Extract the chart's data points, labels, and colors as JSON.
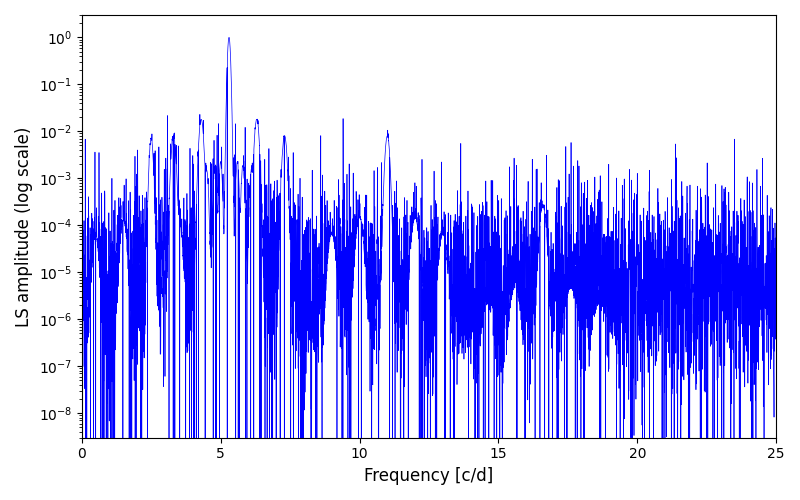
{
  "xlabel": "Frequency [c/d]",
  "ylabel": "LS amplitude (log scale)",
  "xlim": [
    0,
    25
  ],
  "ylim": [
    3e-09,
    3
  ],
  "line_color": "#0000FF",
  "line_width": 0.5,
  "background_color": "#ffffff",
  "main_peak_freq": 5.3,
  "main_peak_amp": 1.0,
  "secondary_peak_freq": 11.0,
  "secondary_peak_amp": 0.008,
  "small_peak_freq": 2.5,
  "small_peak_amp": 0.007,
  "tertiary_peak_freq": 16.6,
  "tertiary_peak_amp": 0.00025,
  "noise_floor_log_mean": -11.5,
  "noise_floor_log_sigma": 2.8,
  "num_points": 5000,
  "seed": 137
}
